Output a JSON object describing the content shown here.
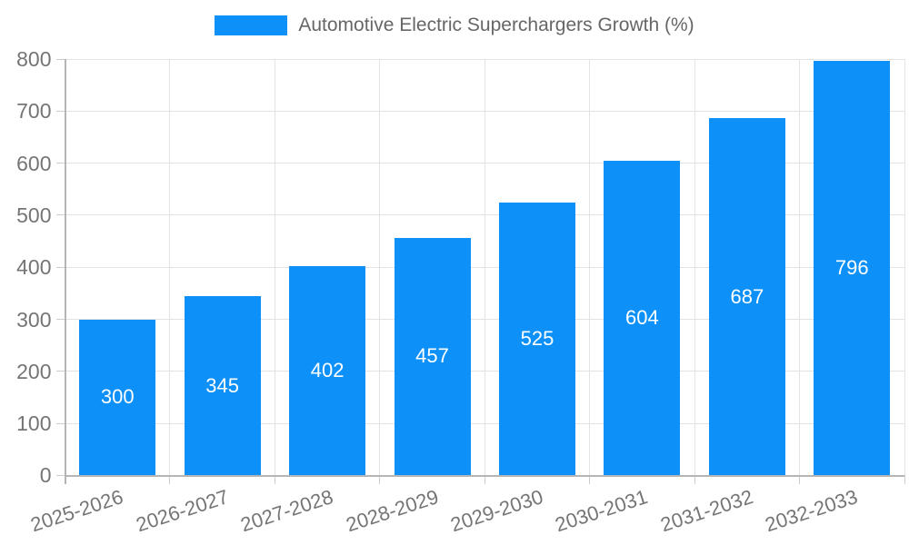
{
  "legend": {
    "label": "Automotive Electric Superchargers Growth (%)",
    "swatch_color": "#0d90f8"
  },
  "chart_data": {
    "type": "bar",
    "title": "Automotive Electric Superchargers Growth (%)",
    "categories": [
      "2025-2026",
      "2026-2027",
      "2027-2028",
      "2028-2029",
      "2029-2030",
      "2030-2031",
      "2031-2032",
      "2032-2033"
    ],
    "values": [
      300,
      345,
      402,
      457,
      525,
      604,
      687,
      796
    ],
    "xlabel": "",
    "ylabel": "",
    "ylim": [
      0,
      800
    ],
    "yticks": [
      0,
      100,
      200,
      300,
      400,
      500,
      600,
      700,
      800
    ],
    "grid": "on",
    "legend_position": "top-center",
    "x_label_rotation_deg": -18,
    "colors": {
      "bar": "#0d90f8",
      "value_label": "#ffffff",
      "tick_text": "#757575",
      "legend_text": "#666666",
      "gridline": "#e3e3e3",
      "tick_mark": "#cccccc",
      "axis_line": "#b5b5b5",
      "background": "#ffffff"
    }
  }
}
